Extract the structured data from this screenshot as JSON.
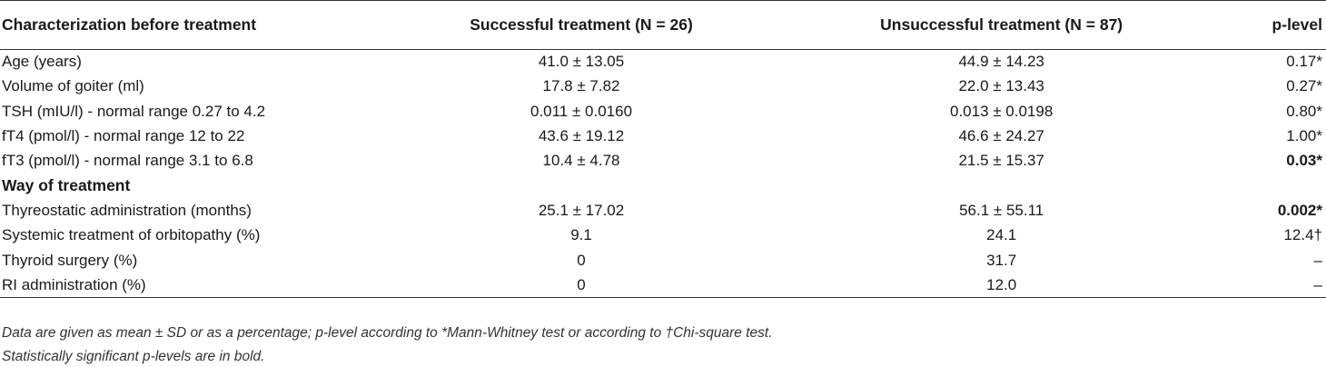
{
  "header": {
    "col1": "Characterization before treatment",
    "col2": "Successful treatment (N = 26)",
    "col3": "Unsuccessful treatment (N = 87)",
    "col4": "p-level"
  },
  "rows": [
    {
      "label": "Age (years)",
      "successful": "41.0 ± 13.05",
      "unsuccessful": "44.9 ± 14.23",
      "p": "0.17*",
      "p_bold": false
    },
    {
      "label": "Volume of goiter (ml)",
      "successful": "17.8 ± 7.82",
      "unsuccessful": "22.0 ± 13.43",
      "p": "0.27*",
      "p_bold": false
    },
    {
      "label": "TSH (mIU/l) - normal range 0.27 to 4.2",
      "successful": "0.011 ± 0.0160",
      "unsuccessful": "0.013 ± 0.0198",
      "p": "0.80*",
      "p_bold": false
    },
    {
      "label": "fT4 (pmol/l) - normal range 12 to 22",
      "successful": "43.6 ± 19.12",
      "unsuccessful": "46.6 ± 24.27",
      "p": "1.00*",
      "p_bold": false
    },
    {
      "label": "fT3 (pmol/l) - normal range 3.1 to 6.8",
      "successful": "10.4 ± 4.78",
      "unsuccessful": "21.5 ± 15.37",
      "p": "0.03*",
      "p_bold": true
    }
  ],
  "section2_title": "Way of treatment",
  "rows2": [
    {
      "label": "Thyreostatic administration (months)",
      "successful": "25.1 ± 17.02",
      "unsuccessful": "56.1 ± 55.11",
      "p": "0.002*",
      "p_bold": true
    },
    {
      "label": "Systemic treatment of orbitopathy (%)",
      "successful": "9.1",
      "unsuccessful": "24.1",
      "p": "12.4†",
      "p_bold": false
    },
    {
      "label": "Thyroid surgery (%)",
      "successful": "0",
      "unsuccessful": "31.7",
      "p": "–",
      "p_bold": false
    },
    {
      "label": "RI administration (%)",
      "successful": "0",
      "unsuccessful": "12.0",
      "p": "–",
      "p_bold": false
    }
  ],
  "footnotes": [
    "Data are given as mean ± SD or as a percentage; p-level according to *Mann-Whitney test or according to †Chi-square test.",
    "Statistically significant p-levels are in bold."
  ]
}
